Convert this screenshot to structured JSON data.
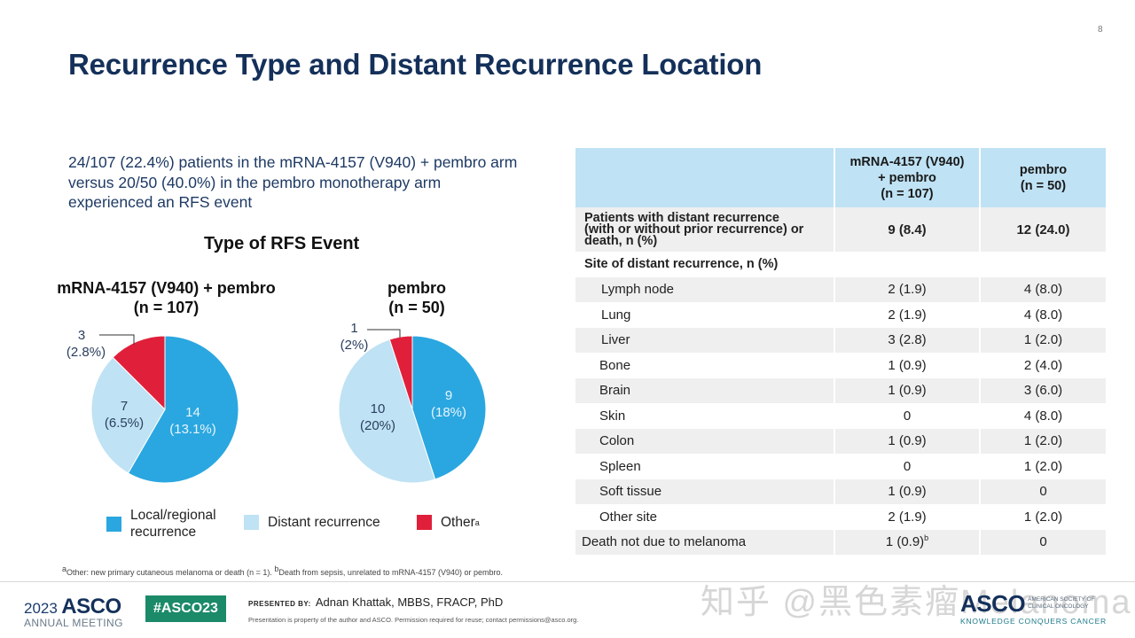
{
  "slide": {
    "number": "8",
    "title": "Recurrence Type and Distant Recurrence Location",
    "summary": "24/107 (22.4%) patients in the mRNA-4157 (V940) + pembro arm versus 20/50 (40.0%) in the pembro monotherapy arm experienced an RFS event"
  },
  "colors": {
    "local_regional": "#2aa7e0",
    "distant": "#bfe2f4",
    "other": "#e0203a",
    "title": "#14305a",
    "table_header": "#bfe2f4",
    "row_band": "#efefef",
    "hashtag_bg": "#1b8a68"
  },
  "chart_data": {
    "type": "pie",
    "title": "Type of RFS Event",
    "legend": [
      "Local/regional recurrence",
      "Distant recurrence",
      "Other"
    ],
    "legend_superscripts": [
      "",
      "",
      "a"
    ],
    "series": [
      {
        "name": "mRNA-4157 (V940) + pembro",
        "n_label": "(n = 107)",
        "categories": [
          "Local/regional recurrence",
          "Distant recurrence",
          "Other"
        ],
        "values": [
          14,
          7,
          3
        ],
        "percent_labels": [
          "(13.1%)",
          "(6.5%)",
          "(2.8%)"
        ]
      },
      {
        "name": "pembro",
        "n_label": "(n = 50)",
        "categories": [
          "Local/regional recurrence",
          "Distant recurrence",
          "Other"
        ],
        "values": [
          9,
          10,
          1
        ],
        "percent_labels": [
          "(18%)",
          "(20%)",
          "(2%)"
        ]
      }
    ]
  },
  "table": {
    "headers": [
      "",
      "mRNA-4157 (V940)\n+ pembro\n(n = 107)",
      "pembro\n(n = 50)"
    ],
    "header_lines": {
      "col2": [
        "mRNA-4157 (V940)",
        "+ pembro",
        "(n = 107)"
      ],
      "col3": [
        "pembro",
        "(n = 50)"
      ]
    },
    "main_row": {
      "label_lines": [
        "Patients with distant recurrence",
        "(with or without prior recurrence) or",
        "death, n (%)"
      ],
      "combo": "9 (8.4)",
      "pembro": "12 (24.0)"
    },
    "section_label": "Site of distant recurrence, n (%)",
    "sites": [
      {
        "label": "Lymph node",
        "combo": "2 (1.9)",
        "pembro": "4 (8.0)"
      },
      {
        "label": "Lung",
        "combo": "2 (1.9)",
        "pembro": "4 (8.0)"
      },
      {
        "label": "Liver",
        "combo": "3 (2.8)",
        "pembro": "1 (2.0)"
      },
      {
        "label": "Bone",
        "combo": "1 (0.9)",
        "pembro": "2 (4.0)"
      },
      {
        "label": "Brain",
        "combo": "1 (0.9)",
        "pembro": "3 (6.0)"
      },
      {
        "label": "Skin",
        "combo": "0",
        "pembro": "4 (8.0)"
      },
      {
        "label": "Colon",
        "combo": "1 (0.9)",
        "pembro": "1 (2.0)"
      },
      {
        "label": "Spleen",
        "combo": "0",
        "pembro": "1 (2.0)"
      },
      {
        "label": "Soft tissue",
        "combo": "1 (0.9)",
        "pembro": "0"
      },
      {
        "label": "Other site",
        "combo": "2 (1.9)",
        "pembro": "1 (2.0)"
      }
    ],
    "death_row": {
      "label": "Death not due to melanoma",
      "combo": "1 (0.9)",
      "combo_sup": "b",
      "pembro": "0"
    }
  },
  "footnote": {
    "a_sup": "a",
    "a_text": "Other: new primary cutaneous melanoma or death (n = 1). ",
    "b_sup": "b",
    "b_text": "Death from sepsis, unrelated to mRNA-4157 (V940) or pembro."
  },
  "footer": {
    "meeting_year": "2023",
    "meeting_brand": "ASCO",
    "meeting_sub": "ANNUAL MEETING",
    "hashtag": "#ASCO23",
    "presented_by_label": "PRESENTED BY:",
    "presenter": "Adnan Khattak, MBBS, FRACP, PhD",
    "property_notice": "Presentation is property of the author and ASCO. Permission required for reuse; contact permissions@asco.org.",
    "org_logo": "ASCO",
    "org_name_line1": "AMERICAN SOCIETY OF",
    "org_name_line2": "CLINICAL ONCOLOGY",
    "org_tagline": "KNOWLEDGE CONQUERS CANCER",
    "watermark": "知乎 @黑色素瘤Melanoma"
  }
}
